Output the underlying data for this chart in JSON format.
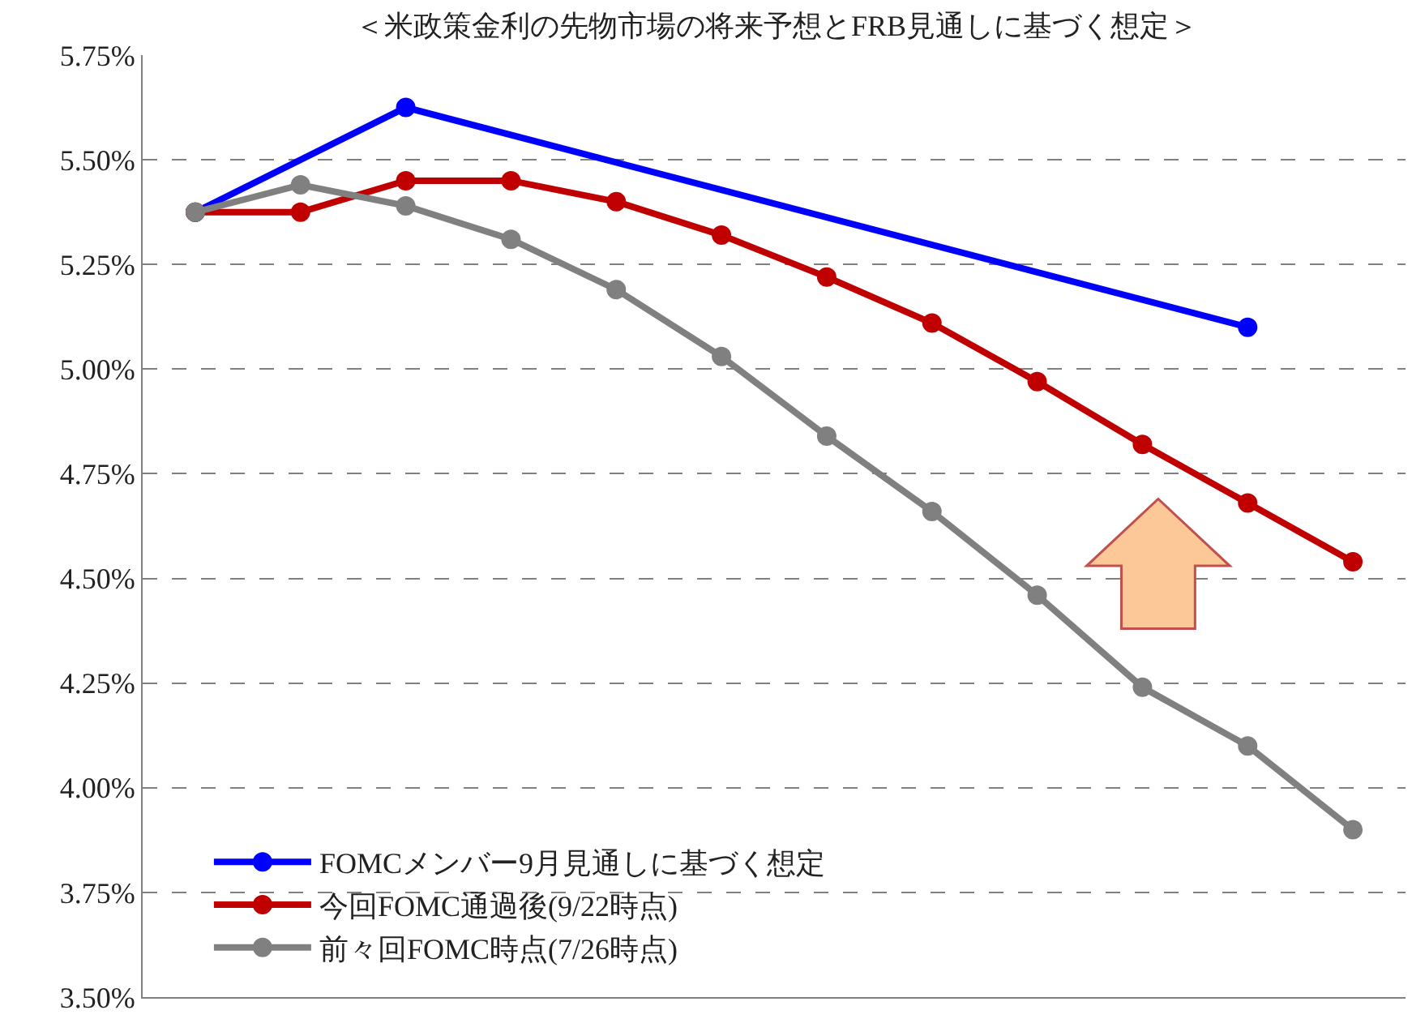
{
  "chart_data": {
    "type": "line",
    "title": "＜米政策金利の先物市場の将来予想とFRB見通しに基づく想定＞",
    "categories": [
      null,
      null,
      null,
      null,
      null,
      null,
      null,
      null,
      null,
      null,
      null,
      null
    ],
    "series": [
      {
        "name": "FOMCメンバー9月見通しに基づく想定",
        "color": "#0000ff",
        "values": [
          5.375,
          null,
          5.625,
          null,
          null,
          null,
          null,
          null,
          null,
          null,
          5.1,
          null
        ]
      },
      {
        "name": "今回FOMC通過後(9/22時点)",
        "color": "#c00000",
        "values": [
          5.375,
          5.375,
          5.45,
          5.45,
          5.4,
          5.32,
          5.22,
          5.11,
          4.97,
          4.82,
          4.68,
          4.54
        ]
      },
      {
        "name": "前々回FOMC時点(7/26時点)",
        "color": "#808080",
        "values": [
          5.375,
          5.44,
          5.39,
          5.31,
          5.19,
          5.03,
          4.84,
          4.66,
          4.46,
          4.24,
          4.1,
          3.9
        ]
      }
    ],
    "ylim": [
      3.5,
      5.75
    ],
    "yticks": [
      {
        "value": 3.5,
        "label": "3.50%"
      },
      {
        "value": 3.75,
        "label": "3.75%"
      },
      {
        "value": 4.0,
        "label": "4.00%"
      },
      {
        "value": 4.25,
        "label": "4.25%"
      },
      {
        "value": 4.5,
        "label": "4.50%"
      },
      {
        "value": 4.75,
        "label": "4.75%"
      },
      {
        "value": 5.0,
        "label": "5.00%"
      },
      {
        "value": 5.25,
        "label": "5.25%"
      },
      {
        "value": 5.5,
        "label": "5.50%"
      },
      {
        "value": 5.75,
        "label": "5.75%"
      }
    ],
    "grid": "y",
    "legend": "bottom left",
    "marker": "circle",
    "line_style": "solid",
    "tick_labels": "y"
  }
}
